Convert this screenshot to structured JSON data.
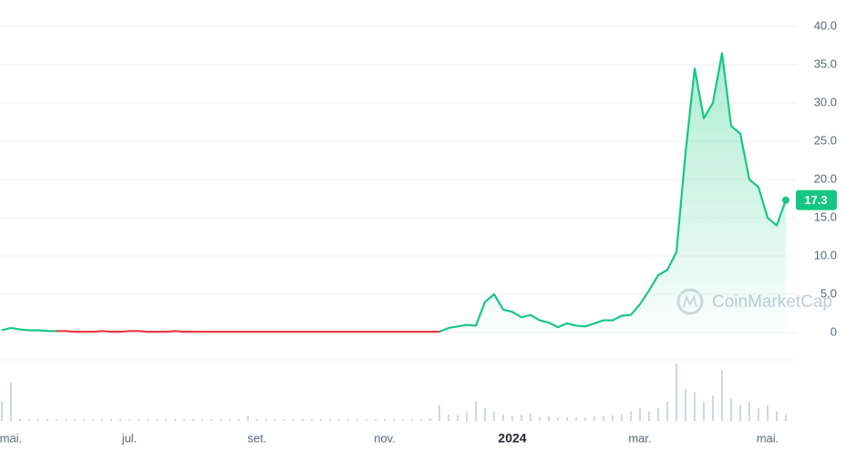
{
  "chart_data": {
    "type": "line",
    "watermark": "CoinMarketCap",
    "categories": [
      null,
      "mai.",
      null,
      null,
      null,
      null,
      null,
      null,
      null,
      null,
      null,
      null,
      null,
      null,
      "jul.",
      null,
      null,
      null,
      null,
      null,
      null,
      null,
      null,
      null,
      null,
      null,
      null,
      null,
      "set.",
      null,
      null,
      null,
      null,
      null,
      null,
      null,
      null,
      null,
      null,
      null,
      null,
      null,
      "nov.",
      null,
      null,
      null,
      null,
      null,
      null,
      null,
      null,
      null,
      null,
      null,
      null,
      null,
      "2024",
      null,
      null,
      null,
      null,
      null,
      null,
      null,
      null,
      null,
      null,
      null,
      null,
      null,
      "mar.",
      null,
      null,
      null,
      null,
      null,
      null,
      null,
      null,
      null,
      null,
      null,
      null,
      null,
      "mai.",
      null,
      null
    ],
    "series": [
      {
        "color": "#16c784",
        "values": [
          0.3,
          0.6,
          0.4,
          0.3,
          0.3,
          0.2,
          0.2,
          null,
          null,
          null,
          null,
          null,
          null,
          null,
          null,
          null,
          null,
          null,
          null,
          null,
          null,
          null,
          null,
          null,
          null,
          null,
          null,
          null,
          null,
          null,
          null,
          null,
          null,
          null,
          null,
          null,
          null,
          null,
          null,
          null,
          null,
          null,
          null,
          null,
          null,
          null,
          null,
          null,
          0.1,
          0.6,
          0.8,
          1.0,
          0.9,
          4.0,
          5.0,
          3.0,
          2.7,
          2.0,
          2.3,
          1.6,
          1.3,
          0.7,
          1.2,
          0.9,
          0.8,
          1.2,
          1.6,
          1.6,
          2.2,
          2.3,
          3.7,
          5.5,
          7.5,
          8.2,
          10.5,
          23.5,
          34.5,
          28,
          30,
          36.5,
          27,
          26,
          20,
          19,
          15,
          14,
          17.3
        ]
      },
      {
        "color": "#ea3943",
        "values": [
          null,
          null,
          null,
          null,
          null,
          null,
          0.2,
          0.2,
          0.1,
          0.1,
          0.1,
          0.2,
          0.1,
          0.1,
          0.2,
          0.2,
          0.1,
          0.1,
          0.1,
          0.2,
          0.1,
          0.1,
          0.1,
          0.1,
          0.1,
          0.1,
          0.1,
          0.1,
          0.1,
          0.1,
          0.1,
          0.1,
          0.1,
          0.1,
          0.1,
          0.1,
          0.1,
          0.1,
          0.1,
          0.1,
          0.1,
          0.1,
          0.1,
          0.1,
          0.1,
          0.1,
          0.1,
          0.1,
          0.1,
          null,
          null,
          null,
          null,
          null,
          null,
          null,
          null,
          null,
          null,
          null,
          null,
          null,
          null,
          null,
          null,
          null,
          null,
          null,
          null,
          null,
          null,
          null,
          null,
          null,
          null,
          null,
          null,
          null,
          null,
          null,
          null,
          null,
          null,
          null,
          null,
          null,
          null
        ]
      }
    ],
    "volume": [
      3,
      6,
      0.4,
      0.3,
      0.3,
      0.3,
      0.3,
      0.3,
      0.3,
      0.3,
      0.3,
      0.3,
      0.3,
      0.3,
      0.3,
      0.3,
      0.3,
      0.3,
      0.3,
      0.3,
      0.3,
      0.3,
      0.3,
      0.3,
      0.3,
      0.3,
      0.3,
      0.8,
      0.3,
      0.3,
      0.3,
      0.3,
      0.3,
      0.3,
      0.3,
      0.3,
      0.3,
      0.3,
      0.3,
      0.3,
      0.3,
      0.3,
      0.3,
      0.3,
      0.3,
      0.3,
      0.3,
      0.4,
      2.5,
      1,
      1,
      1.5,
      3,
      2,
      1.5,
      1,
      0.8,
      1,
      1.2,
      0.6,
      0.8,
      0.5,
      0.6,
      0.5,
      0.5,
      0.7,
      0.8,
      0.9,
      1,
      1.5,
      2,
      1.5,
      2,
      3,
      9,
      5,
      4.5,
      3,
      4,
      8,
      3.5,
      2.5,
      3,
      2,
      2.5,
      1.5,
      1
    ],
    "volume_color": "#cfd6e4",
    "ylim": [
      0,
      40
    ],
    "yticks": [
      0,
      {
        "value": 5,
        "label": "5.0"
      },
      {
        "value": 10,
        "label": "10.0"
      },
      {
        "value": 15,
        "label": "15.0"
      },
      {
        "value": 20,
        "label": "20.0"
      },
      {
        "value": 25,
        "label": "25.0"
      },
      {
        "value": 30,
        "label": "30.0"
      },
      {
        "value": 35,
        "label": "35.0"
      },
      {
        "value": 40,
        "label": "40.0"
      }
    ],
    "grid": true
  }
}
